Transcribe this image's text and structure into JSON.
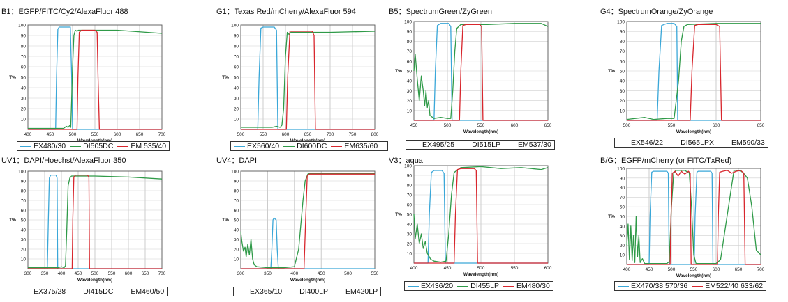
{
  "colors": {
    "ex": "#3aa7d8",
    "di": "#2f9a48",
    "em": "#d8262d"
  },
  "chart_data": [
    {
      "type": "line",
      "title": "B1：EGFP/FITC/Cy2/AlexaFluor 488",
      "xlabel": "Wavelength(nm)",
      "ylabel": "T%",
      "xlim": [
        400,
        700
      ],
      "ylim": [
        0,
        100
      ],
      "xticks": [
        400,
        450,
        500,
        550,
        600,
        650,
        700
      ],
      "yticks": [
        10,
        20,
        30,
        40,
        50,
        60,
        70,
        80,
        90,
        100
      ],
      "series": [
        {
          "name": "EX480/30",
          "kind": "ex",
          "x": [
            400,
            462,
            464,
            467,
            470,
            495,
            498,
            500,
            700
          ],
          "y": [
            0,
            0,
            50,
            96,
            98,
            98,
            50,
            0,
            0
          ]
        },
        {
          "name": "DI505DC",
          "kind": "di",
          "x": [
            400,
            480,
            486,
            490,
            494,
            496,
            498,
            500,
            503,
            506,
            510,
            513,
            600,
            700
          ],
          "y": [
            1,
            1,
            3,
            2,
            4,
            2,
            30,
            60,
            90,
            95,
            94,
            95,
            95,
            92
          ]
        },
        {
          "name": "EM 535/40",
          "kind": "em",
          "x": [
            400,
            510,
            512,
            515,
            520,
            550,
            555,
            557,
            560,
            700
          ],
          "y": [
            0,
            0,
            50,
            93,
            95,
            95,
            93,
            50,
            0,
            0
          ]
        }
      ]
    },
    {
      "type": "line",
      "title": "G1：Texas Red/mCherry/AlexaFluor 594",
      "xlabel": "Wavelength(nm)",
      "ylabel": "T%",
      "xlim": [
        500,
        800
      ],
      "ylim": [
        0,
        100
      ],
      "xticks": [
        500,
        550,
        600,
        650,
        700,
        750,
        800
      ],
      "yticks": [
        10,
        20,
        30,
        40,
        50,
        60,
        70,
        80,
        90,
        100
      ],
      "series": [
        {
          "name": "EX560/40",
          "kind": "ex",
          "x": [
            500,
            538,
            541,
            545,
            550,
            575,
            580,
            583,
            800
          ],
          "y": [
            0,
            0,
            50,
            97,
            98,
            98,
            95,
            0,
            0
          ]
        },
        {
          "name": "DI600DC",
          "kind": "di",
          "x": [
            500,
            570,
            580,
            588,
            592,
            596,
            600,
            604,
            608,
            612,
            700,
            800
          ],
          "y": [
            2,
            2,
            3,
            2,
            4,
            20,
            70,
            93,
            91,
            93,
            93,
            94
          ]
        },
        {
          "name": "EM635/60",
          "kind": "em",
          "x": [
            500,
            602,
            605,
            610,
            660,
            664,
            667,
            800
          ],
          "y": [
            0,
            0,
            50,
            94,
            94,
            90,
            0,
            0
          ]
        }
      ]
    },
    {
      "type": "line",
      "title": "B5：SpectrumGreen/ZyGreen",
      "xlabel": "Wavelength(nm)",
      "ylabel": "T%",
      "xlim": [
        450,
        650
      ],
      "ylim": [
        0,
        100
      ],
      "xticks": [
        450,
        500,
        550,
        600,
        650
      ],
      "yticks": [
        10,
        20,
        30,
        40,
        50,
        60,
        70,
        80,
        90,
        100
      ],
      "series": [
        {
          "name": "EX495/25",
          "kind": "ex",
          "x": [
            450,
            480,
            482,
            485,
            490,
            502,
            505,
            507,
            650
          ],
          "y": [
            0,
            0,
            50,
            96,
            98,
            98,
            95,
            0,
            0
          ]
        },
        {
          "name": "DI515LP",
          "kind": "di",
          "x": [
            450,
            452,
            455,
            458,
            461,
            464,
            466,
            468,
            470,
            472,
            474,
            480,
            490,
            500,
            505,
            508,
            511,
            514,
            520,
            560,
            600,
            640,
            650
          ],
          "y": [
            50,
            67,
            42,
            20,
            45,
            30,
            15,
            30,
            13,
            20,
            5,
            2,
            3,
            2,
            2,
            30,
            70,
            93,
            97,
            97,
            98,
            98,
            95
          ]
        },
        {
          "name": "EM537/30",
          "kind": "em",
          "x": [
            450,
            518,
            520,
            523,
            528,
            548,
            551,
            553,
            650
          ],
          "y": [
            0,
            0,
            50,
            96,
            97,
            97,
            95,
            0,
            0
          ]
        }
      ]
    },
    {
      "type": "line",
      "title": "G4：SpectrumOrange/ZyOrange",
      "xlabel": "Wavelength(nm)",
      "ylabel": "T%",
      "xlim": [
        500,
        650
      ],
      "ylim": [
        0,
        100
      ],
      "xticks": [
        500,
        550,
        600,
        650
      ],
      "yticks": [
        10,
        20,
        30,
        40,
        50,
        60,
        70,
        80,
        90,
        100
      ],
      "series": [
        {
          "name": "EX546/22",
          "kind": "ex",
          "x": [
            500,
            534,
            536,
            539,
            545,
            553,
            556,
            557,
            650
          ],
          "y": [
            0,
            0,
            50,
            96,
            98,
            98,
            95,
            0,
            0
          ]
        },
        {
          "name": "DI565LPX",
          "kind": "di",
          "x": [
            500,
            520,
            530,
            545,
            553,
            558,
            561,
            564,
            568,
            600,
            650
          ],
          "y": [
            1,
            3,
            1,
            2,
            2,
            40,
            80,
            95,
            97,
            98,
            98
          ]
        },
        {
          "name": "EM590/33",
          "kind": "em",
          "x": [
            500,
            571,
            573,
            576,
            580,
            600,
            604,
            606,
            650
          ],
          "y": [
            0,
            0,
            50,
            96,
            97,
            97,
            95,
            0,
            0
          ]
        }
      ]
    },
    {
      "type": "line",
      "title": "UV1：DAPI/Hoechst/AlexaFluor 350",
      "xlabel": "Wavelength(nm)",
      "ylabel": "T%",
      "xlim": [
        300,
        700
      ],
      "ylim": [
        0,
        100
      ],
      "xticks": [
        300,
        350,
        400,
        450,
        500,
        550,
        600,
        650,
        700
      ],
      "yticks": [
        10,
        20,
        30,
        40,
        50,
        60,
        70,
        80,
        90,
        100
      ],
      "series": [
        {
          "name": "EX375/28",
          "kind": "ex",
          "x": [
            300,
            358,
            361,
            364,
            368,
            384,
            387,
            389,
            700
          ],
          "y": [
            0,
            0,
            50,
            93,
            96,
            96,
            93,
            0,
            0
          ]
        },
        {
          "name": "DI415DC",
          "kind": "di",
          "x": [
            300,
            390,
            400,
            408,
            412,
            416,
            420,
            425,
            430,
            450,
            500,
            600,
            700
          ],
          "y": [
            1,
            1,
            2,
            1,
            3,
            40,
            85,
            93,
            95,
            95,
            95,
            94,
            92
          ]
        },
        {
          "name": "EM460/50",
          "kind": "em",
          "x": [
            300,
            432,
            434,
            437,
            442,
            478,
            482,
            484,
            700
          ],
          "y": [
            0,
            0,
            50,
            94,
            96,
            96,
            94,
            0,
            0
          ]
        }
      ]
    },
    {
      "type": "line",
      "title": "UV4：DAPI",
      "xlabel": "Wavelength(nm)",
      "ylabel": "T%",
      "xlim": [
        300,
        550
      ],
      "ylim": [
        0,
        100
      ],
      "xticks": [
        300,
        350,
        400,
        450,
        500,
        550
      ],
      "yticks": [
        10,
        20,
        30,
        40,
        50,
        60,
        70,
        80,
        90,
        100
      ],
      "series": [
        {
          "name": "EX365/10",
          "kind": "ex",
          "x": [
            300,
            356,
            358,
            360,
            362,
            366,
            368,
            370,
            550
          ],
          "y": [
            0,
            0,
            20,
            50,
            52,
            50,
            20,
            0,
            0
          ]
        },
        {
          "name": "DI400LP",
          "kind": "di",
          "x": [
            300,
            302,
            305,
            308,
            310,
            313,
            316,
            319,
            322,
            325,
            330,
            350,
            380,
            400,
            408,
            412,
            416,
            420,
            425,
            430,
            450,
            500,
            550
          ],
          "y": [
            38,
            28,
            18,
            22,
            12,
            25,
            14,
            30,
            10,
            4,
            2,
            1,
            1,
            2,
            20,
            45,
            70,
            90,
            97,
            98,
            98,
            98,
            98
          ]
        },
        {
          "name": "EM420LP",
          "kind": "em",
          "x": [
            300,
            418,
            421,
            424,
            428,
            550
          ],
          "y": [
            0,
            0,
            50,
            95,
            97,
            97
          ]
        }
      ]
    },
    {
      "type": "line",
      "title": "V3：aqua",
      "xlabel": "Wavelength(nm)",
      "ylabel": "T%",
      "xlim": [
        400,
        600
      ],
      "ylim": [
        0,
        100
      ],
      "xticks": [
        400,
        450,
        500,
        550,
        600
      ],
      "yticks": [
        10,
        20,
        30,
        40,
        50,
        60,
        70,
        80,
        90,
        100
      ],
      "series": [
        {
          "name": "EX436/20",
          "kind": "ex",
          "x": [
            400,
            421,
            423,
            426,
            430,
            442,
            445,
            447,
            600
          ],
          "y": [
            0,
            0,
            50,
            93,
            95,
            95,
            92,
            0,
            0
          ]
        },
        {
          "name": "DI455LP",
          "kind": "di",
          "x": [
            400,
            402,
            405,
            408,
            411,
            414,
            417,
            420,
            425,
            430,
            440,
            448,
            452,
            456,
            460,
            470,
            500,
            530,
            560,
            590,
            600
          ],
          "y": [
            50,
            25,
            40,
            20,
            30,
            15,
            22,
            10,
            4,
            2,
            1,
            2,
            30,
            70,
            93,
            98,
            99,
            97,
            98,
            96,
            98
          ]
        },
        {
          "name": "EM480/30",
          "kind": "em",
          "x": [
            400,
            460,
            462,
            465,
            470,
            490,
            493,
            495,
            600
          ],
          "y": [
            0,
            0,
            50,
            96,
            97,
            97,
            95,
            0,
            0
          ]
        }
      ]
    },
    {
      "type": "line",
      "title": "B/G：EGFP/mCherry (or FITC/TxRed)",
      "xlabel": "Wavelength(nm)",
      "ylabel": "T%",
      "xlim": [
        400,
        700
      ],
      "ylim": [
        0,
        100
      ],
      "xticks": [
        400,
        450,
        500,
        550,
        600,
        650,
        700
      ],
      "yticks": [
        10,
        20,
        30,
        40,
        50,
        60,
        70,
        80,
        90,
        100
      ],
      "series": [
        {
          "name": "EX470/38 570/36",
          "kind": "ex",
          "x": [
            400,
            450,
            452,
            456,
            460,
            490,
            493,
            495,
            551,
            553,
            557,
            560,
            588,
            591,
            593,
            700
          ],
          "y": [
            0,
            0,
            50,
            96,
            97,
            97,
            95,
            0,
            0,
            50,
            96,
            97,
            97,
            95,
            0,
            0
          ]
        },
        {
          "name": "",
          "kind": "di",
          "x": [
            400,
            403,
            406,
            409,
            412,
            415,
            418,
            421,
            424,
            427,
            430,
            435,
            440,
            460,
            490,
            495,
            500,
            505,
            510,
            530,
            540,
            545,
            550,
            555,
            560,
            600,
            610,
            640,
            650,
            660,
            670,
            680,
            690,
            700
          ],
          "y": [
            20,
            42,
            5,
            40,
            4,
            30,
            2,
            50,
            8,
            30,
            2,
            6,
            1,
            1,
            1,
            3,
            60,
            95,
            98,
            98,
            95,
            60,
            10,
            1,
            1,
            1,
            5,
            98,
            98,
            96,
            90,
            60,
            15,
            10
          ]
        },
        {
          "name": "EM522/40 633/62",
          "kind": "em",
          "x": [
            400,
            497,
            499,
            502,
            508,
            515,
            522,
            530,
            538,
            542,
            544,
            603,
            605,
            608,
            615,
            625,
            635,
            645,
            655,
            662,
            665,
            700
          ],
          "y": [
            0,
            0,
            50,
            95,
            97,
            92,
            97,
            94,
            97,
            95,
            0,
            0,
            50,
            96,
            97,
            98,
            95,
            97,
            98,
            95,
            0,
            0
          ]
        }
      ]
    }
  ],
  "legends": [
    {
      "items": [
        {
          "kind": "ex",
          "label": "EX480/30"
        },
        {
          "kind": "di",
          "label": "DI505DC"
        },
        {
          "kind": "em",
          "label": "EM 535/40"
        }
      ]
    },
    {
      "items": [
        {
          "kind": "ex",
          "label": "EX560/40"
        },
        {
          "kind": "di",
          "label": "DI600DC"
        },
        {
          "kind": "em",
          "label": "EM635/60"
        }
      ]
    },
    {
      "items": [
        {
          "kind": "ex",
          "label": "EX495/25"
        },
        {
          "kind": "di",
          "label": "DI515LP"
        },
        {
          "kind": "em",
          "label": "EM537/30"
        }
      ]
    },
    {
      "items": [
        {
          "kind": "ex",
          "label": "EX546/22"
        },
        {
          "kind": "di",
          "label": "DI565LPX"
        },
        {
          "kind": "em",
          "label": "EM590/33"
        }
      ]
    },
    {
      "items": [
        {
          "kind": "ex",
          "label": "EX375/28"
        },
        {
          "kind": "di",
          "label": "DI415DC"
        },
        {
          "kind": "em",
          "label": "EM460/50"
        }
      ]
    },
    {
      "items": [
        {
          "kind": "ex",
          "label": "EX365/10"
        },
        {
          "kind": "di",
          "label": "DI400LP"
        },
        {
          "kind": "em",
          "label": "EM420LP"
        }
      ]
    },
    {
      "items": [
        {
          "kind": "ex",
          "label": "EX436/20"
        },
        {
          "kind": "di",
          "label": "DI455LP"
        },
        {
          "kind": "em",
          "label": "EM480/30"
        }
      ]
    },
    {
      "items": [
        {
          "kind": "ex",
          "label": "EX470/38  570/36"
        },
        {
          "kind": "em",
          "label": "EM522/40  633/62"
        }
      ]
    }
  ]
}
